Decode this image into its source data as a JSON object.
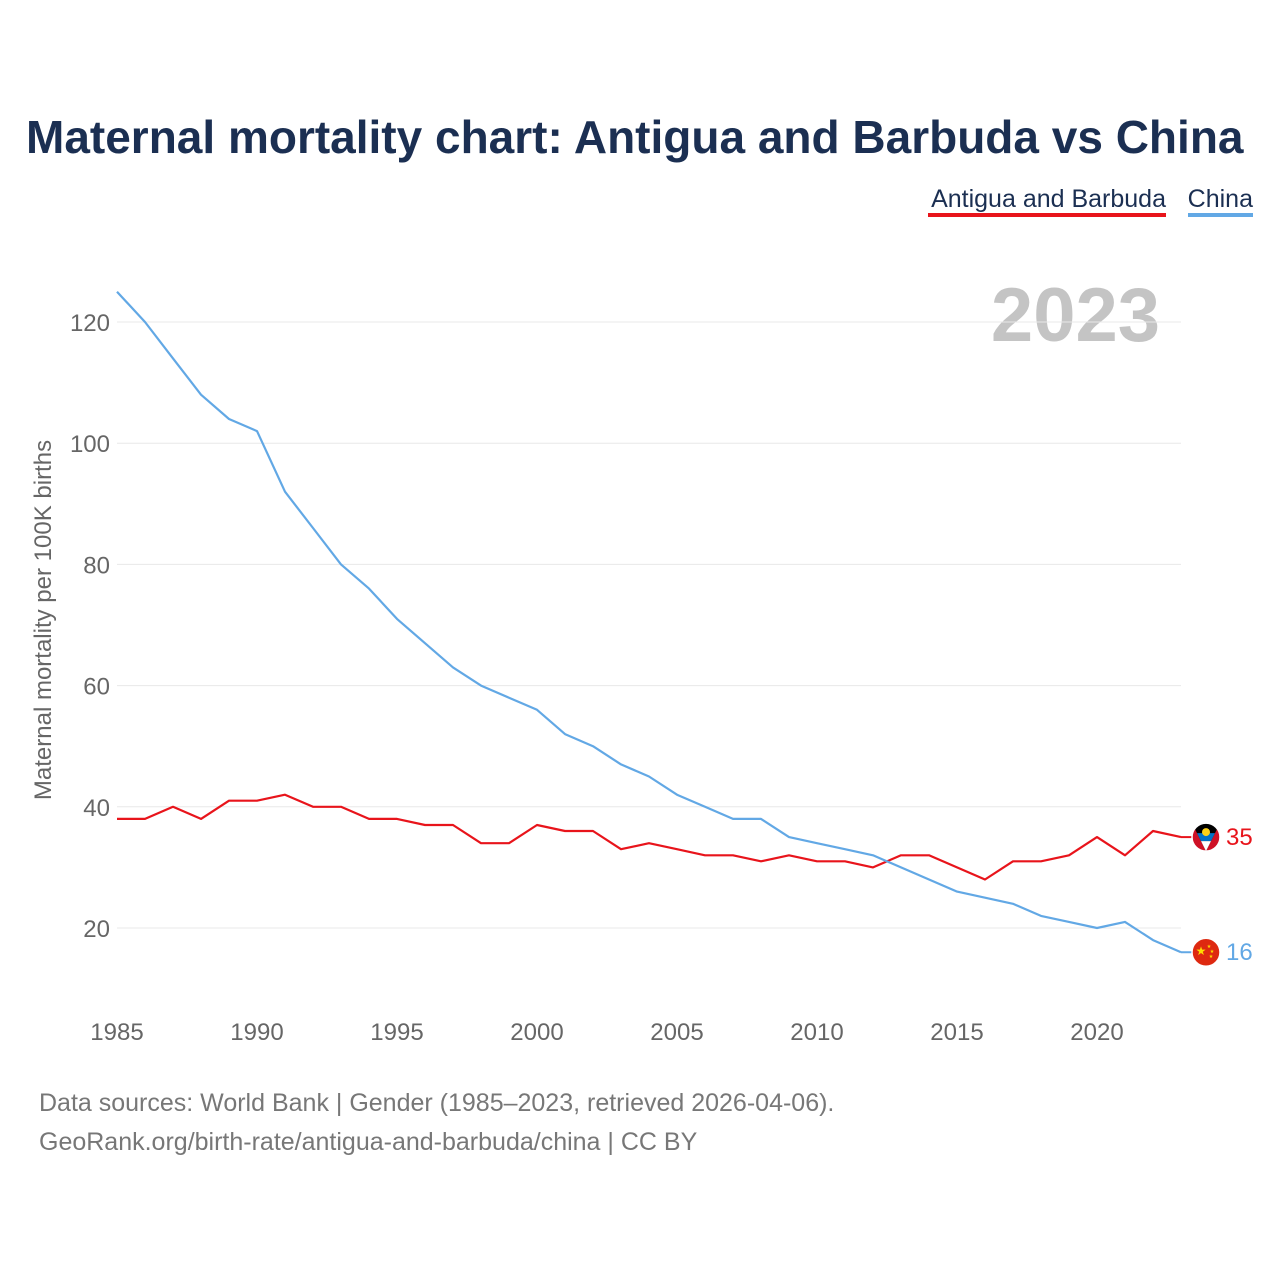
{
  "chart_data": {
    "type": "line",
    "title": "Maternal mortality chart: Antigua and Barbuda vs China",
    "ylabel": "Maternal mortality per 100K births",
    "xlabel": "",
    "year_label": "2023",
    "xlim": [
      1985,
      2023
    ],
    "ylim": [
      10,
      128
    ],
    "yticks": [
      20,
      40,
      60,
      80,
      100,
      120
    ],
    "xticks": [
      1985,
      1990,
      1995,
      2000,
      2005,
      2010,
      2015,
      2020
    ],
    "x": [
      1985,
      1986,
      1987,
      1988,
      1989,
      1990,
      1991,
      1992,
      1993,
      1994,
      1995,
      1996,
      1997,
      1998,
      1999,
      2000,
      2001,
      2002,
      2003,
      2004,
      2005,
      2006,
      2007,
      2008,
      2009,
      2010,
      2011,
      2012,
      2013,
      2014,
      2015,
      2016,
      2017,
      2018,
      2019,
      2020,
      2021,
      2022,
      2023
    ],
    "series": [
      {
        "name": "Antigua and Barbuda",
        "color": "#e8141b",
        "end_label": "35",
        "flag": "antigua-flag",
        "values": [
          38,
          38,
          40,
          38,
          41,
          41,
          42,
          40,
          40,
          38,
          38,
          37,
          37,
          34,
          34,
          37,
          36,
          36,
          33,
          34,
          33,
          32,
          32,
          31,
          32,
          31,
          31,
          30,
          32,
          32,
          30,
          28,
          31,
          31,
          32,
          35,
          32,
          36,
          35
        ]
      },
      {
        "name": "China",
        "color": "#62a8e5",
        "end_label": "16",
        "flag": "china-flag",
        "values": [
          125,
          120,
          114,
          108,
          104,
          102,
          92,
          86,
          80,
          76,
          71,
          67,
          63,
          60,
          58,
          56,
          52,
          50,
          47,
          45,
          42,
          40,
          38,
          38,
          35,
          34,
          33,
          32,
          30,
          28,
          26,
          25,
          24,
          22,
          21,
          20,
          21,
          18,
          16
        ]
      }
    ]
  },
  "source_line_1": "Data sources: World Bank | Gender (1985–2023, retrieved 2026-04-06).",
  "source_line_2": "GeoRank.org/birth-rate/antigua-and-barbuda/china | CC BY"
}
